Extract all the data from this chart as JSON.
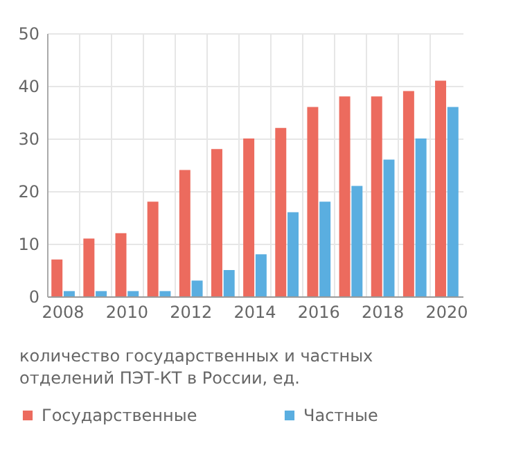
{
  "chart_data": {
    "type": "bar",
    "title": "количество государственных и частных отделений ПЭТ-КТ в России, ед.",
    "categories": [
      "2008",
      null,
      "2010",
      null,
      "2012",
      null,
      "2014",
      null,
      "2016",
      null,
      "2018",
      null,
      "2020"
    ],
    "series": [
      {
        "name": "Государственные",
        "color": "#ec6b5e",
        "values": [
          7,
          11,
          12,
          18,
          24,
          28,
          30,
          32,
          36,
          38,
          38,
          39,
          41
        ]
      },
      {
        "name": "Частные",
        "color": "#5aaee0",
        "values": [
          1,
          1,
          1,
          1,
          3,
          5,
          8,
          16,
          18,
          21,
          26,
          30,
          36
        ]
      }
    ],
    "ylim": [
      0,
      50
    ],
    "yticks": [
      0,
      10,
      20,
      30,
      40,
      50
    ],
    "grid": true,
    "legend": "bottom"
  }
}
